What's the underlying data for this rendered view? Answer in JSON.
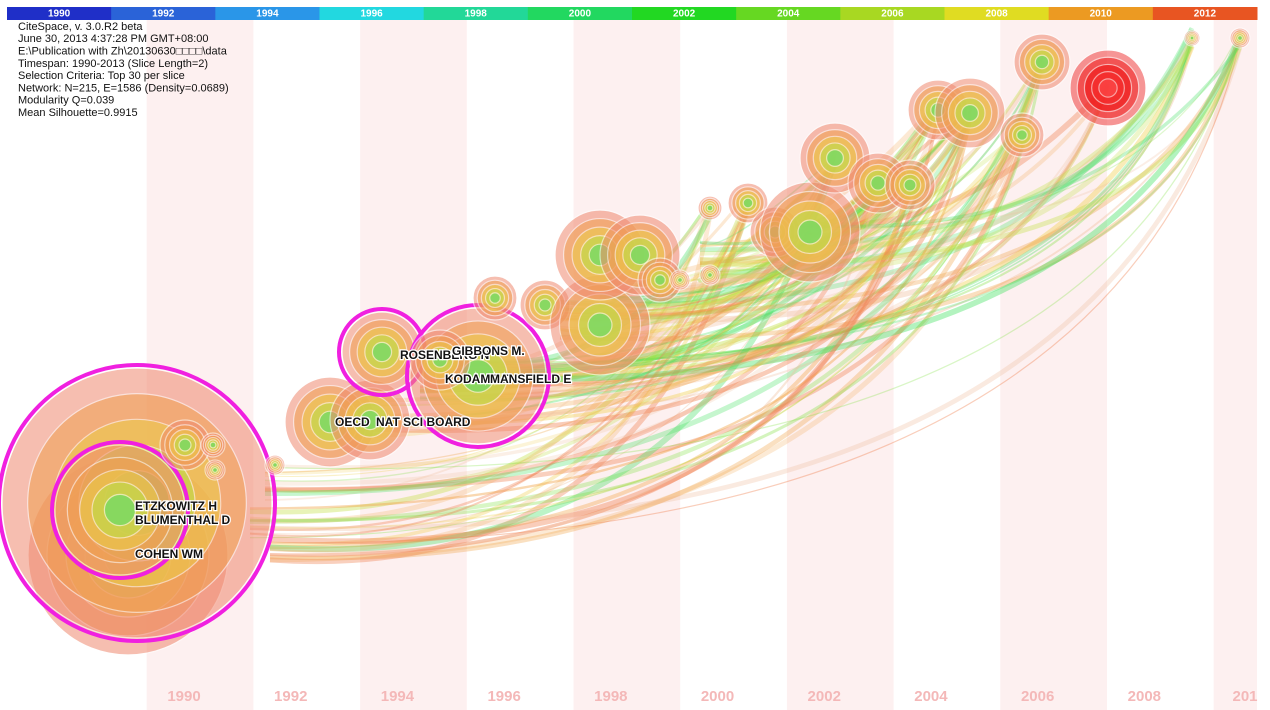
{
  "legend_bar": {
    "years": [
      "1990",
      "1992",
      "1994",
      "1996",
      "1998",
      "2000",
      "2002",
      "2004",
      "2006",
      "2008",
      "2010",
      "2012"
    ],
    "colors": [
      "#1f2fc8",
      "#2a63d8",
      "#2a96e8",
      "#22d8e0",
      "#22d898",
      "#22d860",
      "#22d822",
      "#66d822",
      "#a8d822",
      "#e0dc22",
      "#ec9a22",
      "#e85522"
    ]
  },
  "info": [
    "CiteSpace, v. 3.0.R2 beta",
    "June 30, 2013 4:37:28 PM GMT+08:00",
    "E:\\Publication with Zh\\20130630□□□□\\data",
    "Timespan: 1990-2013 (Slice Length=2)",
    "Selection Criteria: Top 30 per slice",
    "Network: N=215, E=1586 (Density=0.0689)",
    "Modularity Q=0.039",
    "Mean Silhouette=0.9915"
  ],
  "nodes": [
    {
      "label": "ETZKOWITZ H"
    },
    {
      "label": "BLUMENTHAL D"
    },
    {
      "label": "COHEN WM"
    },
    {
      "label": "ROSENBERG N"
    },
    {
      "label": "GIBBONS M."
    },
    {
      "label": "KODAMA F"
    },
    {
      "label": "MANSFIELD E"
    },
    {
      "label": "OECD"
    },
    {
      "label": "NAT SCI BOARD"
    }
  ],
  "timeline": {
    "years": [
      "1990",
      "1992",
      "1994",
      "1996",
      "1998",
      "2000",
      "2002",
      "2004",
      "2006",
      "2008",
      "201"
    ]
  }
}
